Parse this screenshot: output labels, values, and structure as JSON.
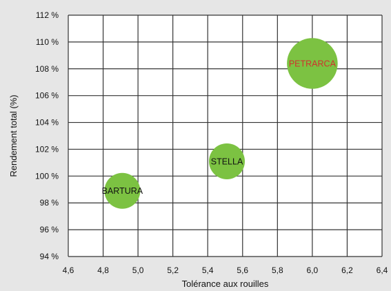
{
  "chart_data": {
    "type": "scatter",
    "xlabel": "Tolérance aux rouilles",
    "ylabel": "Rendement total (%)",
    "xlim": [
      4.6,
      6.4
    ],
    "ylim": [
      94,
      112
    ],
    "x_ticks": [
      "4,6",
      "4,8",
      "5,0",
      "5,2",
      "5,4",
      "5,6",
      "5,8",
      "6,0",
      "6,2",
      "6,4"
    ],
    "y_ticks": [
      "94 %",
      "96 %",
      "98 %",
      "100 %",
      "102 %",
      "104 %",
      "106 %",
      "108 %",
      "110 %",
      "112 %"
    ],
    "grid": true,
    "points": [
      {
        "label": "BARTURA",
        "x": 4.91,
        "y": 98.9,
        "size": 1,
        "label_color": "#111111"
      },
      {
        "label": "STELLA",
        "x": 5.51,
        "y": 101.1,
        "size": 1,
        "label_color": "#111111"
      },
      {
        "label": "PETRARCA",
        "x": 6.0,
        "y": 108.4,
        "size": 2,
        "label_color": "#d0312d"
      }
    ],
    "bubble_color": "#7cc242",
    "background_color": "#e6e6e6",
    "plot_color": "#ffffff",
    "grid_color": "#333333"
  }
}
